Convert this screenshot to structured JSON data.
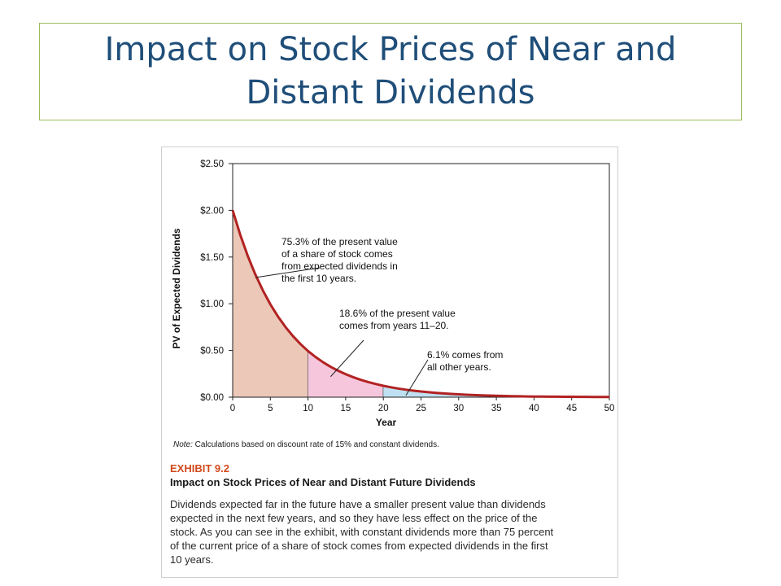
{
  "slide": {
    "title_lines": [
      "Impact on Stock Prices of Near and",
      "Distant Dividends"
    ]
  },
  "chart_data": {
    "type": "area",
    "title": "",
    "xlabel": "Year",
    "ylabel": "PV of Expected Dividends",
    "xlim": [
      0,
      50
    ],
    "ylim": [
      0,
      2.5
    ],
    "x_ticks": [
      0,
      5,
      10,
      15,
      20,
      25,
      30,
      35,
      40,
      45,
      50
    ],
    "x_tick_labels": [
      "0",
      "5",
      "10",
      "15",
      "20",
      "25",
      "30",
      "35",
      "40",
      "45",
      "50"
    ],
    "y_ticks": [
      0,
      0.5,
      1.0,
      1.5,
      2.0,
      2.5
    ],
    "y_tick_labels": [
      "$0.00",
      "$0.50",
      "$1.00",
      "$1.50",
      "$2.00",
      "$2.50"
    ],
    "grid": false,
    "series": [
      {
        "x": [
          0,
          1,
          2,
          3,
          4,
          5,
          6,
          7,
          8,
          9,
          10,
          11,
          12,
          13,
          14,
          15,
          16,
          17,
          18,
          19,
          20,
          21,
          22,
          23,
          24,
          25,
          26,
          27,
          28,
          29,
          30,
          31,
          32,
          33,
          34,
          35,
          36,
          37,
          38,
          39,
          40,
          41,
          42,
          43,
          44,
          45,
          46,
          47,
          48,
          49,
          50
        ],
        "values": [
          2.0,
          1.739,
          1.512,
          1.315,
          1.144,
          0.994,
          0.865,
          0.752,
          0.654,
          0.569,
          0.494,
          0.43,
          0.374,
          0.325,
          0.283,
          0.246,
          0.214,
          0.186,
          0.162,
          0.141,
          0.122,
          0.106,
          0.092,
          0.08,
          0.07,
          0.061,
          0.053,
          0.046,
          0.04,
          0.035,
          0.03,
          0.026,
          0.023,
          0.02,
          0.017,
          0.015,
          0.013,
          0.011,
          0.01,
          0.008,
          0.007,
          0.006,
          0.005,
          0.005,
          0.004,
          0.004,
          0.003,
          0.003,
          0.002,
          0.002,
          0.002
        ],
        "color": "#b22222"
      }
    ],
    "regions": [
      {
        "from": 0,
        "to": 10,
        "color": "#ebc8b8"
      },
      {
        "from": 10,
        "to": 20,
        "color": "#f6c6dc"
      },
      {
        "from": 20,
        "to": 50,
        "color": "#bfe0f1"
      }
    ],
    "annotations": [
      {
        "lines": [
          "75.3% of the present value",
          "of a share of stock comes",
          "from expected dividends in",
          "the first 10 years."
        ],
        "anchor_x": 3,
        "anchor_y": 1.28
      },
      {
        "lines": [
          "18.6% of the present value",
          "comes from years 11–20."
        ],
        "anchor_x": 13,
        "anchor_y": 0.22
      },
      {
        "lines": [
          "6.1% comes from",
          "all other years."
        ],
        "anchor_x": 23,
        "anchor_y": 0.02
      }
    ]
  },
  "exhibit": {
    "note_label": "Note:",
    "note_text": " Calculations based on discount rate of 15% and constant dividends.",
    "number": "EXHIBIT 9.2",
    "title": "Impact on Stock Prices of Near and Distant Future Dividends",
    "caption_lines": [
      "Dividends expected far in the future have a smaller present value than dividends",
      "expected in the next few years, and so they have less effect on the price of the",
      "stock. As you can see in the exhibit, with constant dividends more than 75 percent",
      "of the current price of a share of stock comes from expected dividends in the first",
      "10 years."
    ]
  },
  "colors": {
    "title_text": "#1f4e79",
    "title_border": "#9bbb59",
    "curve": "#b22222",
    "exhibit_accent": "#d2491b"
  }
}
